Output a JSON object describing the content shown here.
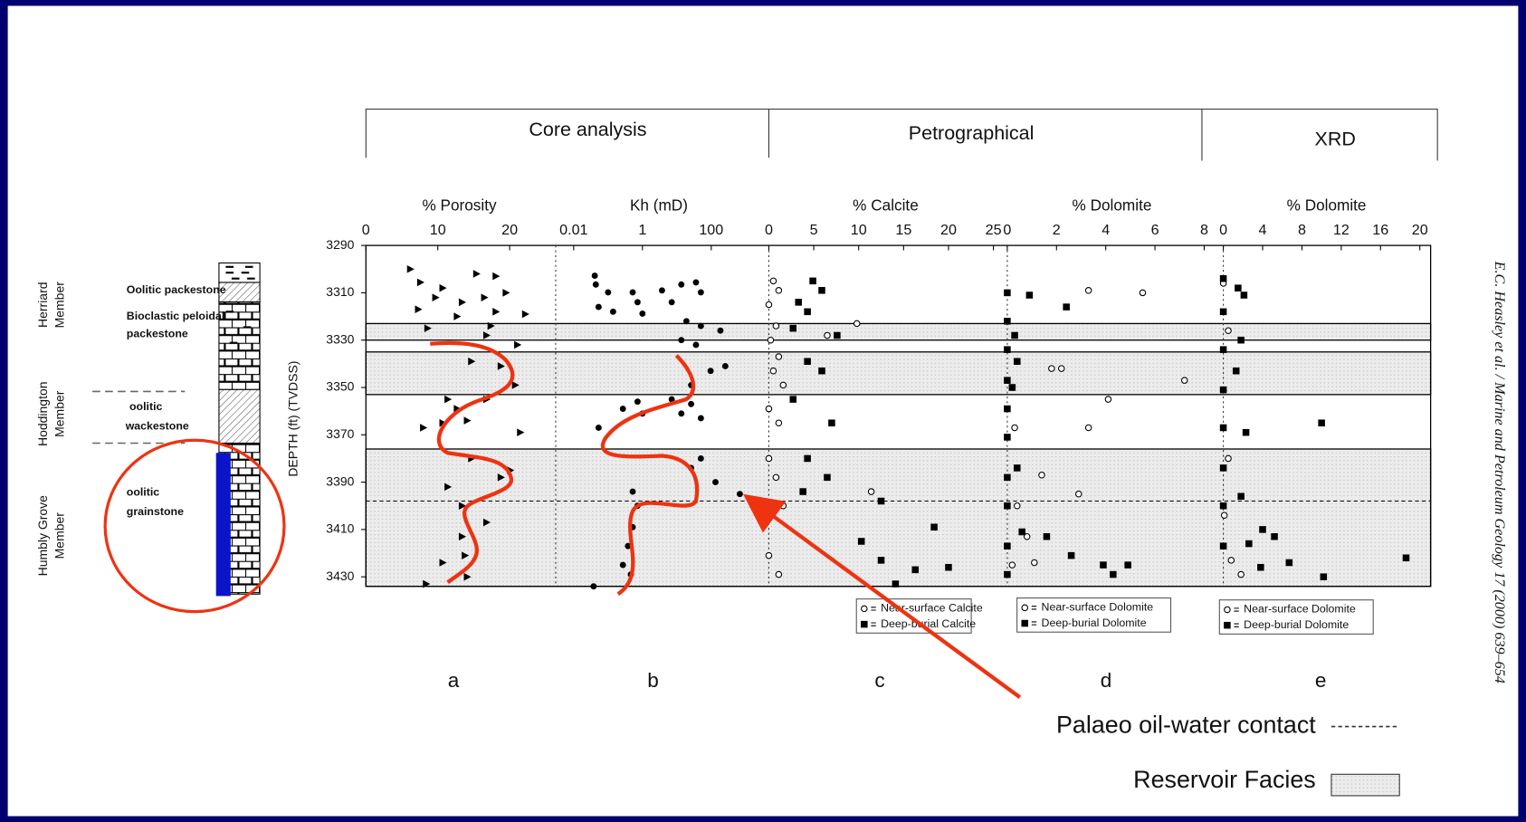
{
  "headers": [
    "Core analysis",
    "Petrographical",
    "XRD"
  ],
  "depth_axis": {
    "label": "DEPTH (ft) (TVDSS)",
    "ylim": [
      3290,
      3434
    ],
    "yticks": [
      3290,
      3310,
      3330,
      3350,
      3370,
      3390,
      3410,
      3430
    ]
  },
  "chart_data": [
    {
      "type": "scatter",
      "panel": "a",
      "xlabel": "% Porosity",
      "xlim": [
        0,
        26
      ],
      "xticks": [
        0,
        10,
        20
      ],
      "series": [
        {
          "marker": "triangle",
          "color": "#000000",
          "x": [
            6.2,
            7.6,
            10.7,
            15.4,
            18.1,
            19.5,
            9.7,
            13.4,
            16.5,
            18.1,
            22.2,
            7.3,
            12.7,
            17.4,
            8.6,
            16.8,
            21.1,
            14.7,
            18.8,
            20.8,
            16.8,
            12.7,
            11.4,
            8.0,
            10.7,
            14.1,
            21.5,
            14.7,
            18.8,
            20.1,
            11.4,
            13.4,
            16.8,
            13.4,
            13.8,
            10.7,
            14.1,
            8.4
          ],
          "y": [
            3300,
            3305.6,
            3308,
            3302,
            3303,
            3310,
            3312,
            3314,
            3312,
            3318,
            3319,
            3317,
            3320,
            3324,
            3325,
            3328,
            3332,
            3339,
            3341,
            3349,
            3355,
            3359,
            3355,
            3367,
            3365,
            3364,
            3369,
            3380,
            3388,
            3385,
            3392,
            3400,
            3407,
            3413,
            3421,
            3424,
            3430,
            3433
          ]
        }
      ]
    },
    {
      "type": "scatter",
      "panel": "b",
      "xlabel": "Kh (mD)",
      "xscale": "log",
      "xlim": [
        0.003,
        3000
      ],
      "xticks": [
        0.01,
        1,
        100
      ],
      "series": [
        {
          "marker": "dot",
          "color": "#000000",
          "x": [
            0.041,
            0.044,
            0.1,
            0.053,
            0.14,
            0.52,
            0.72,
            3.7,
            13.5,
            36,
            50,
            1.0,
            7.1,
            19,
            50,
            185,
            13.5,
            36,
            256,
            96,
            26,
            7.1,
            0.72,
            0.27,
            1.0,
            13.5,
            50,
            26,
            0.053,
            50,
            26,
            133,
            680,
            0.52,
            0.72,
            0.52,
            0.38,
            0.27,
            0.46,
            0.038
          ],
          "y": [
            3302.8,
            3306.5,
            3309.8,
            3316,
            3318,
            3309.8,
            3314,
            3309,
            3306.5,
            3305.6,
            3309.8,
            3318.8,
            3314,
            3322,
            3324,
            3326,
            3330,
            3332,
            3341,
            3343,
            3349,
            3355,
            3356,
            3359,
            3361,
            3361,
            3363,
            3357,
            3367,
            3380,
            3384,
            3390,
            3395,
            3394,
            3400,
            3409,
            3417,
            3425,
            3429,
            3434
          ]
        }
      ]
    },
    {
      "type": "scatter",
      "panel": "c",
      "xlabel": "% Calcite",
      "xlim": [
        0,
        26
      ],
      "xticks": [
        0,
        5,
        10,
        15,
        20,
        25
      ],
      "series": [
        {
          "name": "Near-surface Calcite",
          "marker": "open-circle",
          "color": "#000000",
          "x": [
            0.5,
            1.1,
            0,
            0.8,
            0.2,
            1.1,
            0.5,
            1.6,
            0,
            1.1,
            0,
            0.8,
            1.6,
            0,
            1.1,
            9.8,
            6.5,
            11.4
          ],
          "y": [
            3305,
            3309,
            3315,
            3324,
            3330,
            3337,
            3343,
            3349,
            3359,
            3365,
            3380,
            3388,
            3400,
            3421,
            3429,
            3323,
            3328,
            3394
          ]
        },
        {
          "name": "Deep-burial Calcite",
          "marker": "square",
          "color": "#000000",
          "x": [
            3.3,
            4.9,
            5.9,
            4.3,
            2.7,
            7.6,
            4.3,
            5.9,
            2.7,
            7.0,
            4.3,
            6.5,
            3.8,
            12.5,
            10.3,
            18.4,
            12.5,
            16.3,
            20.0,
            14.1
          ],
          "y": [
            3314,
            3305,
            3309,
            3318,
            3325,
            3328,
            3339,
            3343,
            3355,
            3365,
            3380,
            3388,
            3394,
            3398,
            3415,
            3409,
            3423,
            3427,
            3426,
            3433
          ]
        }
      ]
    },
    {
      "type": "scatter",
      "panel": "d",
      "xlabel": "% Dolomite",
      "xlim": [
        0,
        8.5
      ],
      "xticks": [
        0,
        2,
        4,
        6,
        8
      ],
      "series": [
        {
          "name": "Near-surface Dolomite",
          "marker": "open-circle",
          "color": "#000000",
          "x": [
            3.3,
            5.5,
            1.8,
            2.2,
            4.1,
            3.3,
            0.3,
            1.4,
            2.9,
            0.4,
            0.8,
            1.1,
            0.2,
            7.2
          ],
          "y": [
            3309,
            3310,
            3342,
            3342,
            3355,
            3367,
            3367,
            3387,
            3395,
            3400,
            3413,
            3424,
            3425,
            3347
          ]
        },
        {
          "name": "Deep-burial Dolomite",
          "marker": "square",
          "color": "#000000",
          "x": [
            0,
            0,
            0,
            0,
            0,
            0,
            0,
            0,
            0,
            0,
            0.9,
            2.4,
            0.3,
            0.4,
            0.2,
            0.4,
            0.6,
            1.6,
            2.6,
            3.9,
            4.3,
            4.9
          ],
          "y": [
            3310,
            3322,
            3334,
            3347,
            3359,
            3371,
            3388,
            3400,
            3417,
            3429,
            3311,
            3316,
            3328,
            3339,
            3350,
            3384,
            3411,
            3413,
            3421,
            3425,
            3429,
            3425
          ]
        }
      ]
    },
    {
      "type": "scatter",
      "panel": "e",
      "xlabel": "% Dolomite",
      "xlim": [
        0,
        21
      ],
      "xticks": [
        0,
        4,
        8,
        12,
        16,
        20
      ],
      "series": [
        {
          "name": "Near-surface Dolomite",
          "marker": "open-circle",
          "color": "#000000",
          "x": [
            0,
            0.5,
            0,
            0.5,
            0.1,
            0.8,
            1.8
          ],
          "y": [
            3306,
            3326,
            3351,
            3380,
            3404,
            3423,
            3429
          ]
        },
        {
          "name": "Deep-burial Dolomite",
          "marker": "square",
          "color": "#000000",
          "x": [
            0,
            0,
            0,
            0,
            0,
            0,
            0,
            0,
            2.1,
            1.5,
            1.8,
            1.3,
            2.3,
            10.0,
            1.8,
            4.0,
            2.6,
            5.2,
            3.8,
            6.7,
            10.2,
            18.6
          ],
          "y": [
            3304,
            3318,
            3334,
            3351,
            3367,
            3384,
            3400,
            3417,
            3311,
            3308,
            3330,
            3343,
            3369,
            3365,
            3396,
            3410,
            3416,
            3413,
            3426,
            3424,
            3430,
            3422
          ]
        }
      ]
    }
  ],
  "reservoir_intervals": [
    [
      3323,
      3330
    ],
    [
      3335,
      3353
    ],
    [
      3376,
      3434
    ]
  ],
  "oil_water_contact": 3398,
  "stratigraphy": {
    "members": [
      [
        "Herriard",
        "Member"
      ],
      [
        "Hoddington",
        "Member"
      ],
      [
        "Humbly Grove",
        "Member"
      ]
    ],
    "lithologies": [
      [
        "Oolitic packestone"
      ],
      [
        "Bioclastic peloidal",
        "packestone"
      ],
      [
        "oolitic",
        "wackestone"
      ],
      [
        "oolitic",
        "grainstone"
      ]
    ]
  },
  "annotations": {
    "owc_label": "Palaeo oil-water contact",
    "reservoir_label": "Reservoir Facies"
  },
  "citation": "E.C. Heasley et al. / Marine and Petroleum Geology 17 (2000) 639–654"
}
